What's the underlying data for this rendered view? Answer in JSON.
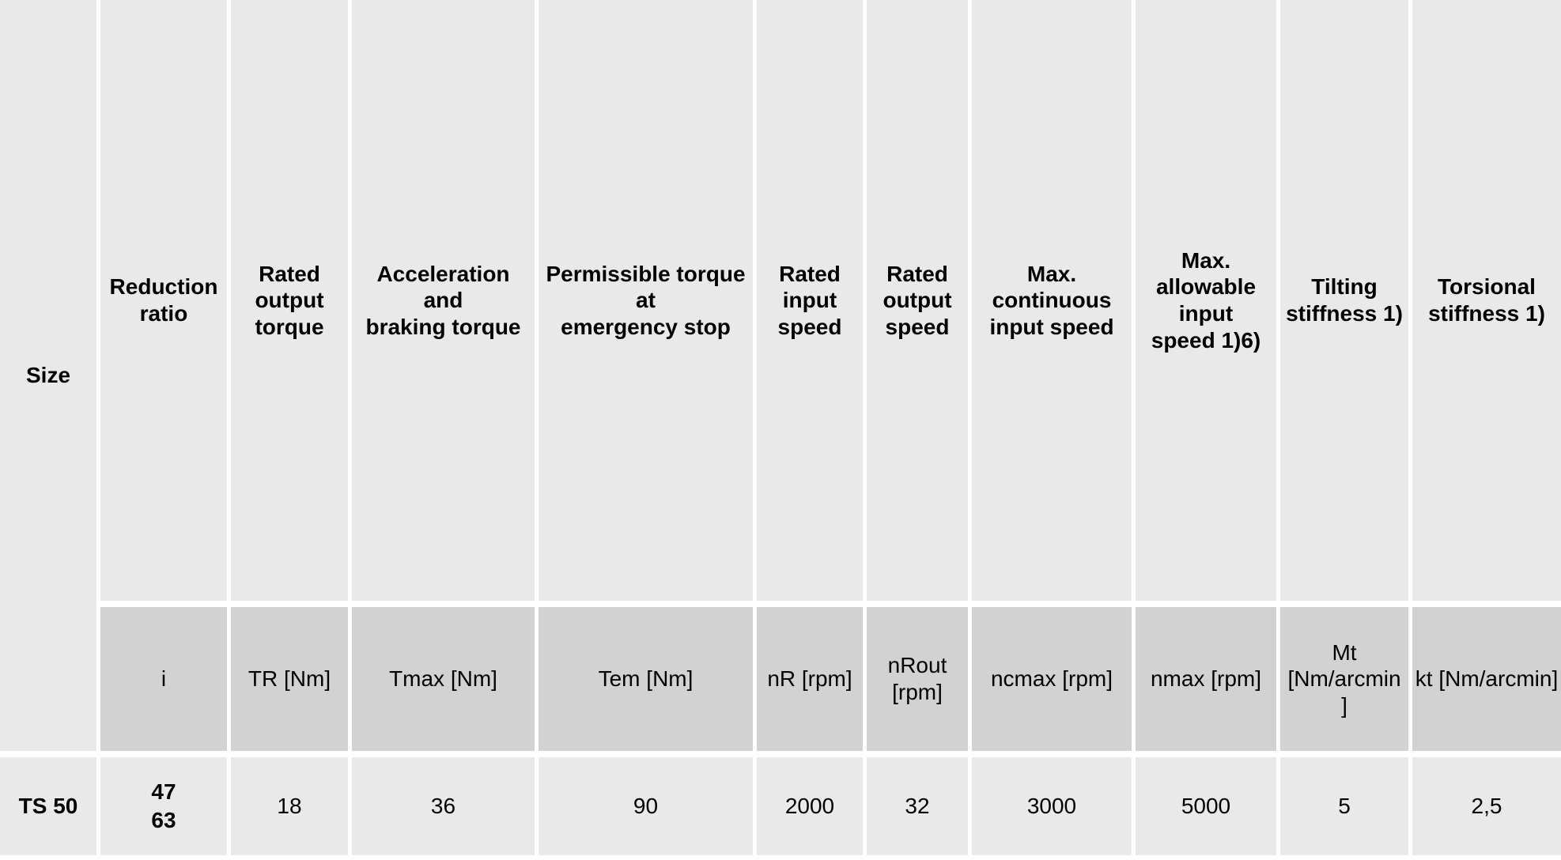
{
  "table": {
    "size_header": "Size",
    "columns": [
      {
        "id": "reduction-ratio",
        "header": "Reduction\nratio",
        "unit": "i"
      },
      {
        "id": "rated-output-torque",
        "header": "Rated\noutput\ntorque",
        "unit": "TR [Nm]"
      },
      {
        "id": "accel-braking-torque",
        "header": "Acceleration\nand\nbraking torque",
        "unit": "Tmax [Nm]"
      },
      {
        "id": "permissible-torque-emergency-stop",
        "header": "Permissible torque\nat\nemergency stop",
        "unit": "Tem [Nm]"
      },
      {
        "id": "rated-input-speed",
        "header": "Rated\ninput\nspeed",
        "unit": "nR [rpm]"
      },
      {
        "id": "rated-output-speed",
        "header": "Rated\noutput\nspeed",
        "unit": "nRout\n[rpm]"
      },
      {
        "id": "max-continuous-input-speed",
        "header": "Max.\ncontinuous\ninput speed",
        "unit": "ncmax [rpm]"
      },
      {
        "id": "max-allowable-input-speed",
        "header": "Max.\nallowable\ninput\nspeed 1)6)",
        "unit": "nmax [rpm]"
      },
      {
        "id": "tilting-stiffness",
        "header": "Tilting\nstiffness 1)",
        "unit": "Mt\n[Nm/arcmin\n]"
      },
      {
        "id": "torsional-stiffness",
        "header": "Torsional\nstiffness 1)",
        "unit": "kt [Nm/arcmin]"
      }
    ],
    "row": {
      "size": "TS 50",
      "values": [
        "47\n63",
        "18",
        "36",
        "90",
        "2000",
        "32",
        "3000",
        "5000",
        "5",
        "2,5"
      ]
    },
    "colors": {
      "cell_light": "#e9e9e9",
      "cell_dark": "#d2d2d2",
      "gap": "#ffffff",
      "text": "#000000"
    }
  }
}
